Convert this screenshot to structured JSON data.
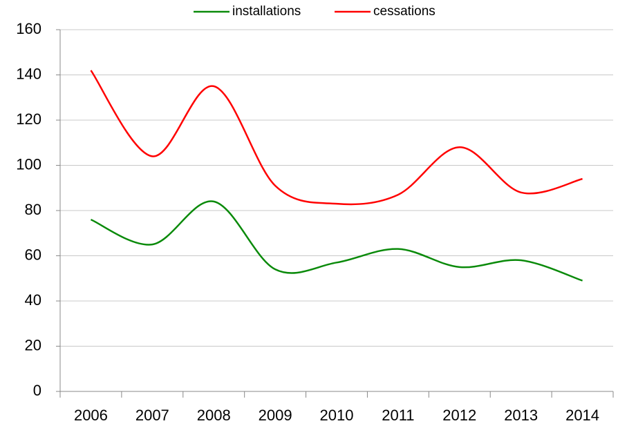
{
  "chart_data": {
    "type": "line",
    "categories": [
      "2006",
      "2007",
      "2008",
      "2009",
      "2010",
      "2011",
      "2012",
      "2013",
      "2014"
    ],
    "series": [
      {
        "name": "installations",
        "color": "#0a8a0a",
        "values": [
          76,
          65,
          84,
          54,
          57,
          63,
          55,
          58,
          49
        ]
      },
      {
        "name": "cessations",
        "color": "#ff0000",
        "values": [
          142,
          104,
          135,
          91,
          83,
          87,
          108,
          88,
          94
        ]
      }
    ],
    "ylim": [
      0,
      160
    ],
    "yticks": [
      0,
      20,
      40,
      60,
      80,
      100,
      120,
      140,
      160
    ],
    "grid": true,
    "legend": "top"
  }
}
